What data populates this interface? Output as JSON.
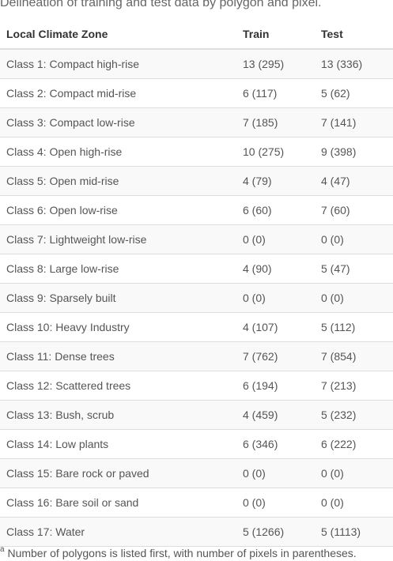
{
  "caption": "Delineation of training and test data by polygon and pixel.",
  "columns": [
    "Local Climate Zone",
    "Train",
    "Test"
  ],
  "rows": [
    {
      "zone": "Class 1: Compact high-rise",
      "train": "13 (295)",
      "test": "13 (336)"
    },
    {
      "zone": "Class 2: Compact mid-rise",
      "train": "6 (117)",
      "test": "5 (62)"
    },
    {
      "zone": "Class 3: Compact low-rise",
      "train": "7 (185)",
      "test": "7 (141)"
    },
    {
      "zone": "Class 4: Open high-rise",
      "train": "10 (275)",
      "test": "9 (398)"
    },
    {
      "zone": "Class 5: Open mid-rise",
      "train": "4 (79)",
      "test": "4 (47)"
    },
    {
      "zone": "Class 6: Open low-rise",
      "train": "6 (60)",
      "test": "7 (60)"
    },
    {
      "zone": "Class 7: Lightweight low-rise",
      "train": "0 (0)",
      "test": "0 (0)"
    },
    {
      "zone": "Class 8: Large low-rise",
      "train": "4 (90)",
      "test": "5 (47)"
    },
    {
      "zone": "Class 9: Sparsely built",
      "train": "0 (0)",
      "test": "0 (0)"
    },
    {
      "zone": "Class 10: Heavy Industry",
      "train": "4 (107)",
      "test": "5 (112)"
    },
    {
      "zone": "Class 11: Dense trees",
      "train": "7 (762)",
      "test": "7 (854)"
    },
    {
      "zone": "Class 12: Scattered trees",
      "train": "6 (194)",
      "test": "7 (213)"
    },
    {
      "zone": "Class 13: Bush, scrub",
      "train": "4 (459)",
      "test": "5 (232)"
    },
    {
      "zone": "Class 14: Low plants",
      "train": "6 (346)",
      "test": "6 (222)"
    },
    {
      "zone": "Class 15: Bare rock or paved",
      "train": "0 (0)",
      "test": "0 (0)"
    },
    {
      "zone": "Class 16: Bare soil or sand",
      "train": "0 (0)",
      "test": "0 (0)"
    },
    {
      "zone": "Class 17: Water",
      "train": "5 (1266)",
      "test": "5 (1113)"
    }
  ],
  "footnote": {
    "marker": "a",
    "text": " Number of polygons is listed first, with number of pixels in parentheses."
  }
}
